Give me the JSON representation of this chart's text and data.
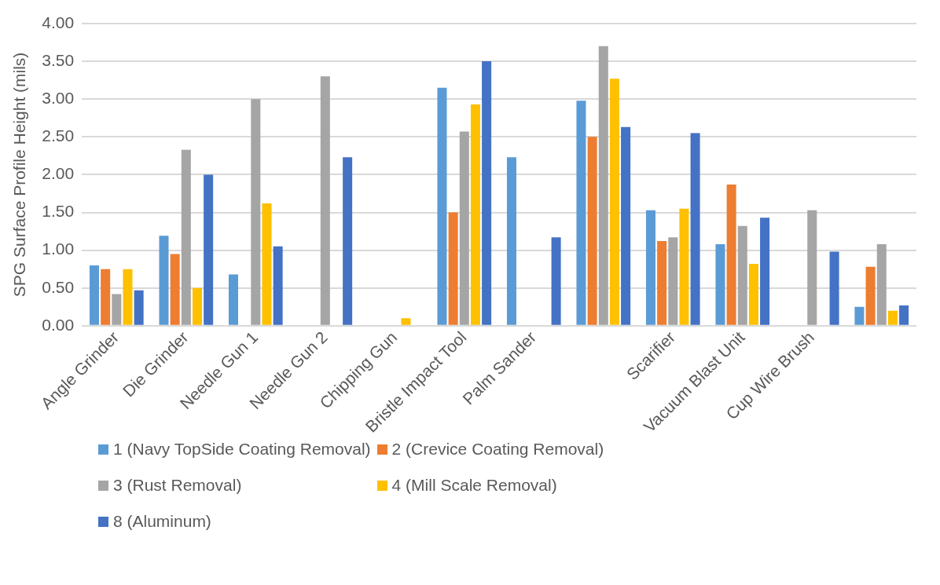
{
  "chart_data": {
    "type": "bar",
    "ylabel": "SPG Surface Profile Height (mils)",
    "categories": [
      "Angle Grinder",
      "Die Grinder",
      "Needle Gun 1",
      "Needle Gun 2",
      "Chipping Gun",
      "Bristle Impact Tool",
      "Palm Sander",
      null,
      "Scarifier",
      "Vacuum Blast Unit",
      "Cup Wire Brush",
      null
    ],
    "series": [
      {
        "name": "1 (Navy TopSide Coating Removal)",
        "color": "#5b9bd5",
        "values": [
          0.8,
          1.19,
          0.68,
          null,
          null,
          3.15,
          2.23,
          2.98,
          1.53,
          1.08,
          null,
          0.25
        ]
      },
      {
        "name": "2 (Crevice Coating Removal)",
        "color": "#ed7d31",
        "values": [
          0.75,
          0.95,
          null,
          null,
          null,
          1.5,
          null,
          2.5,
          1.12,
          1.87,
          null,
          0.78
        ]
      },
      {
        "name": "3 (Rust Removal)",
        "color": "#a5a5a5",
        "values": [
          0.42,
          2.33,
          3.0,
          3.3,
          null,
          2.57,
          null,
          3.7,
          1.17,
          1.32,
          1.53,
          1.08
        ]
      },
      {
        "name": "4 (Mill Scale Removal)",
        "color": "#ffc000",
        "values": [
          0.75,
          0.5,
          1.62,
          null,
          0.1,
          2.93,
          null,
          3.27,
          1.55,
          0.82,
          null,
          0.2
        ]
      },
      {
        "name": "8 (Aluminum)",
        "color": "#4472c4",
        "values": [
          0.47,
          2.0,
          1.05,
          2.23,
          null,
          3.5,
          1.17,
          2.63,
          2.55,
          1.43,
          0.98,
          0.27
        ]
      }
    ],
    "ylim": [
      0,
      4
    ],
    "yticks": [
      {
        "value": 0,
        "label": "0.00"
      },
      {
        "value": 0.5,
        "label": "0.50"
      },
      {
        "value": 1,
        "label": "1.00"
      },
      {
        "value": 1.5,
        "label": "1.50"
      },
      {
        "value": 2,
        "label": "2.00"
      },
      {
        "value": 2.5,
        "label": "2.50"
      },
      {
        "value": 3,
        "label": "3.00"
      },
      {
        "value": 3.5,
        "label": "3.50"
      },
      {
        "value": 4,
        "label": "4.00"
      }
    ],
    "grid": "y",
    "legend": "bottom"
  }
}
